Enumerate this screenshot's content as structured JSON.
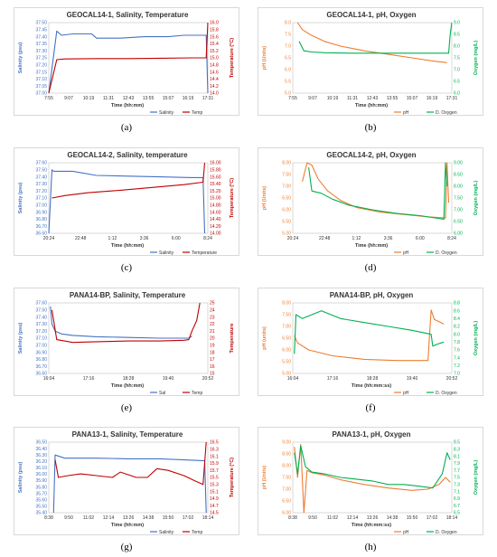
{
  "panels": [
    {
      "id": "a",
      "caption": "(a)",
      "title": "GEOCAL14-1, Salinity, Temperature",
      "xlabel": "Time (hh:mm)",
      "xticks": [
        "7:55",
        "9:07",
        "10:19",
        "11:31",
        "12:43",
        "13:55",
        "15:07",
        "16:19",
        "17:31"
      ],
      "left": {
        "label": "Salinity  (psu)",
        "color": "#4472C4",
        "ticks": [
          "37.00",
          "37.05",
          "37.10",
          "37.15",
          "37.20",
          "37.25",
          "37.30",
          "37.35",
          "37.40",
          "37.45",
          "37.50"
        ],
        "min": 37.0,
        "max": 37.5
      },
      "right": {
        "label": "Temperature (°C)",
        "color": "#C00000",
        "ticks": [
          "14.0",
          "14.2",
          "14.4",
          "14.6",
          "14.8",
          "15.0",
          "15.2",
          "15.4",
          "15.6",
          "15.8",
          "16.0"
        ],
        "min": 14.0,
        "max": 16.0
      },
      "legend": [
        "Salinity",
        "Temp"
      ],
      "series": [
        {
          "name": "Salinity",
          "axis": "left",
          "color": "#4472C4",
          "x": [
            0,
            0.05,
            0.08,
            0.15,
            0.27,
            0.3,
            0.45,
            0.6,
            0.75,
            0.85,
            0.92,
            0.99,
            1.0
          ],
          "y": [
            37.0,
            37.44,
            37.41,
            37.42,
            37.42,
            37.39,
            37.39,
            37.4,
            37.4,
            37.41,
            37.41,
            37.41,
            37.0
          ]
        },
        {
          "name": "Temp",
          "axis": "right",
          "color": "#C00000",
          "x": [
            0,
            0.05,
            0.1,
            0.3,
            0.5,
            0.7,
            0.9,
            0.99,
            1.0
          ],
          "y": [
            14.0,
            14.95,
            14.97,
            14.98,
            14.98,
            14.99,
            15.0,
            15.0,
            16.0
          ]
        }
      ]
    },
    {
      "id": "b",
      "caption": "(b)",
      "title": "GEOCAL14-1, pH, Oxygen",
      "xlabel": "Time (hh:mm)",
      "xticks": [
        "7:55",
        "9:07",
        "10:19",
        "11:31",
        "12:43",
        "13:55",
        "15:07",
        "16:19",
        "17:31"
      ],
      "left": {
        "label": "pH (Units)",
        "color": "#ED7D31",
        "ticks": [
          "5.0",
          "5.5",
          "6.0",
          "6.5",
          "7.0",
          "7.5",
          "8.0"
        ],
        "min": 5.0,
        "max": 8.0
      },
      "right": {
        "label": "Oxygen (mg/L)",
        "color": "#00B050",
        "ticks": [
          "6.0",
          "6.5",
          "7.0",
          "7.5",
          "8.0",
          "8.5",
          "9.0"
        ],
        "min": 6.0,
        "max": 9.0
      },
      "legend": [
        "pH",
        "D. Oxygen"
      ],
      "series": [
        {
          "name": "pH",
          "axis": "left",
          "color": "#ED7D31",
          "x": [
            0.03,
            0.06,
            0.12,
            0.2,
            0.3,
            0.45,
            0.6,
            0.75,
            0.9,
            0.97
          ],
          "y": [
            8.0,
            7.7,
            7.45,
            7.2,
            7.0,
            6.8,
            6.65,
            6.5,
            6.35,
            6.3
          ]
        },
        {
          "name": "D. Oxygen",
          "axis": "right",
          "color": "#00B050",
          "x": [
            0.04,
            0.07,
            0.12,
            0.2,
            0.35,
            0.5,
            0.65,
            0.8,
            0.95,
            0.98,
            0.99,
            1.0
          ],
          "y": [
            8.2,
            7.8,
            7.75,
            7.72,
            7.7,
            7.7,
            7.7,
            7.7,
            7.7,
            7.7,
            8.5,
            9.0
          ]
        }
      ]
    },
    {
      "id": "c",
      "caption": "(c)",
      "title": "GEOCAL14-2, Salinity, temperature",
      "xlabel": "Time (hh:mm)",
      "xticks": [
        "20:24",
        "22:48",
        "1:12",
        "3:36",
        "6:00",
        "8:24"
      ],
      "left": {
        "label": "Salinity (psu)",
        "color": "#4472C4",
        "ticks": [
          "36.60",
          "36.70",
          "36.80",
          "36.90",
          "37.00",
          "37.10",
          "37.20",
          "37.30",
          "37.40",
          "37.50",
          "37.60"
        ],
        "min": 36.6,
        "max": 37.6
      },
      "right": {
        "label": "Temperature (°C)",
        "color": "#C00000",
        "ticks": [
          "14.00",
          "14.20",
          "14.40",
          "14.60",
          "14.80",
          "15.00",
          "15.20",
          "15.40",
          "15.60",
          "15.80",
          "16.00"
        ],
        "min": 14.0,
        "max": 16.0
      },
      "legend": [
        "Salinity",
        "Temperature"
      ],
      "series": [
        {
          "name": "Salinity",
          "axis": "left",
          "color": "#4472C4",
          "x": [
            0,
            0.02,
            0.03,
            0.15,
            0.3,
            0.5,
            0.7,
            0.9,
            0.97,
            0.98
          ],
          "y": [
            36.6,
            37.5,
            37.48,
            37.48,
            37.42,
            37.41,
            37.4,
            37.39,
            37.39,
            36.6
          ]
        },
        {
          "name": "Temperature",
          "axis": "right",
          "color": "#C00000",
          "x": [
            0.02,
            0.1,
            0.25,
            0.45,
            0.65,
            0.85,
            0.97,
            0.98
          ],
          "y": [
            15.0,
            15.07,
            15.15,
            15.22,
            15.3,
            15.38,
            15.45,
            16.0
          ]
        }
      ]
    },
    {
      "id": "d",
      "caption": "(d)",
      "title": "GEOCAL14-2, pH, Oxygen",
      "xlabel": "Time (hh:mm)",
      "xticks": [
        "20:24",
        "22:48",
        "1:12",
        "3:36",
        "6:00",
        "8:24"
      ],
      "left": {
        "label": "pH (Units)",
        "color": "#ED7D31",
        "ticks": [
          "5.00",
          "5.50",
          "6.00",
          "6.50",
          "7.00",
          "7.50",
          "8.00"
        ],
        "min": 5.0,
        "max": 8.0
      },
      "right": {
        "label": "Oxygen (mg/L)",
        "color": "#00B050",
        "ticks": [
          "6.00",
          "6.50",
          "7.00",
          "7.50",
          "8.00",
          "8.50",
          "9.00"
        ],
        "min": 6.0,
        "max": 9.0
      },
      "legend": [
        "pH",
        "D. Oxygen"
      ],
      "series": [
        {
          "name": "pH",
          "axis": "left",
          "color": "#ED7D31",
          "x": [
            0.06,
            0.09,
            0.12,
            0.16,
            0.22,
            0.3,
            0.4,
            0.55,
            0.7,
            0.85,
            0.96,
            0.97,
            0.98
          ],
          "y": [
            7.2,
            8.0,
            7.9,
            7.3,
            6.8,
            6.4,
            6.1,
            5.9,
            5.8,
            5.7,
            5.65,
            8.0,
            6.3
          ]
        },
        {
          "name": "D. Oxygen",
          "axis": "right",
          "color": "#00B050",
          "x": [
            0.1,
            0.12,
            0.18,
            0.25,
            0.35,
            0.5,
            0.65,
            0.8,
            0.95,
            0.96,
            0.97
          ],
          "y": [
            8.8,
            7.8,
            7.7,
            7.45,
            7.2,
            7.0,
            6.85,
            6.75,
            6.6,
            9.0,
            8.0
          ]
        }
      ]
    },
    {
      "id": "e",
      "caption": "(e)",
      "title": "PANA14-BP,  Salinity, Temperature",
      "xlabel": "Time (hh:mm)",
      "xticks": [
        "16:04",
        "17:16",
        "18:28",
        "19:40",
        "20:52"
      ],
      "left": {
        "label": "Salinity (psu)",
        "color": "#4472C4",
        "ticks": [
          "36.60",
          "36.70",
          "36.80",
          "36.90",
          "37.00",
          "37.10",
          "37.20",
          "37.30",
          "37.40",
          "37.50",
          "37.60"
        ],
        "min": 36.6,
        "max": 37.6
      },
      "right": {
        "label": "Temperature",
        "color": "#C00000",
        "ticks": [
          "15",
          "16",
          "17",
          "18",
          "19",
          "20",
          "21",
          "22",
          "23",
          "24",
          "25"
        ],
        "min": 15,
        "max": 25
      },
      "legend": [
        "Sal",
        "Temp"
      ],
      "series": [
        {
          "name": "Sal",
          "axis": "left",
          "color": "#4472C4",
          "x": [
            0.01,
            0.02,
            0.04,
            0.08,
            0.15,
            0.3,
            0.5,
            0.7,
            0.88,
            0.9
          ],
          "y": [
            37.55,
            37.3,
            37.2,
            37.16,
            37.14,
            37.12,
            37.11,
            37.1,
            37.1,
            37.13
          ]
        },
        {
          "name": "Temp",
          "axis": "right",
          "color": "#C00000",
          "x": [
            0.02,
            0.05,
            0.15,
            0.3,
            0.5,
            0.7,
            0.85,
            0.88,
            0.9,
            0.93,
            0.95
          ],
          "y": [
            24,
            19.8,
            19.4,
            19.5,
            19.6,
            19.6,
            19.7,
            19.8,
            21,
            22.5,
            25
          ]
        }
      ]
    },
    {
      "id": "f",
      "caption": "(f)",
      "title": "PANA14-BP, pH, Oxygen",
      "xlabel": "Time (hh:mm:ss)",
      "xticks": [
        "16:04",
        "17:16",
        "18:28",
        "19:40",
        "20:52"
      ],
      "left": {
        "label": "pH (units)",
        "color": "#ED7D31",
        "ticks": [
          "5.00",
          "5.50",
          "6.00",
          "6.50",
          "7.00",
          "7.50",
          "8.00"
        ],
        "min": 5.0,
        "max": 8.0
      },
      "right": {
        "label": "Oxygen (mg/L)",
        "color": "#00B050",
        "ticks": [
          "7.0",
          "7.2",
          "7.4",
          "7.6",
          "7.8",
          "8.0",
          "8.2",
          "8.4",
          "8.6",
          "8.8"
        ],
        "min": 7.0,
        "max": 8.8
      },
      "legend": [
        "pH",
        "D. Oxygen"
      ],
      "series": [
        {
          "name": "pH",
          "axis": "left",
          "color": "#ED7D31",
          "x": [
            0.01,
            0.03,
            0.1,
            0.25,
            0.45,
            0.65,
            0.85,
            0.87,
            0.89,
            0.92,
            0.95
          ],
          "y": [
            6.6,
            6.3,
            6.0,
            5.75,
            5.6,
            5.55,
            5.55,
            7.7,
            7.3,
            7.2,
            7.1
          ]
        },
        {
          "name": "D. Oxygen",
          "axis": "right",
          "color": "#00B050",
          "x": [
            0.01,
            0.02,
            0.06,
            0.12,
            0.18,
            0.3,
            0.45,
            0.6,
            0.75,
            0.87,
            0.88,
            0.91,
            0.95
          ],
          "y": [
            7.5,
            8.5,
            8.4,
            8.5,
            8.6,
            8.4,
            8.3,
            8.2,
            8.1,
            8.0,
            7.7,
            7.75,
            7.8
          ]
        }
      ]
    },
    {
      "id": "g",
      "caption": "(g)",
      "title": "PANA13-1, Salinity, Temperature",
      "xlabel": "Time (hh:mm)",
      "xticks": [
        "8:38",
        "9:50",
        "11:02",
        "12:14",
        "13:26",
        "14:38",
        "15:50",
        "17:02",
        "18:14"
      ],
      "left": {
        "label": "Salinity (psu)",
        "color": "#4472C4",
        "ticks": [
          "35.40",
          "35.50",
          "35.60",
          "35.70",
          "35.80",
          "35.90",
          "36.00",
          "36.10",
          "36.20",
          "36.30",
          "36.40",
          "36.50"
        ],
        "min": 35.4,
        "max": 36.5
      },
      "right": {
        "label": "Temperature (°C)",
        "color": "#C00000",
        "ticks": [
          "14.5",
          "14.7",
          "14.9",
          "15.1",
          "15.3",
          "15.5",
          "15.7",
          "15.9",
          "16.1",
          "16.3",
          "16.5"
        ],
        "min": 14.5,
        "max": 16.5
      },
      "legend": [
        "Salinity",
        "Temp"
      ],
      "series": [
        {
          "name": "Salinity",
          "axis": "left",
          "color": "#4472C4",
          "x": [
            0.03,
            0.04,
            0.1,
            0.3,
            0.5,
            0.7,
            0.9,
            0.98,
            0.99
          ],
          "y": [
            35.4,
            36.3,
            36.25,
            36.25,
            36.24,
            36.24,
            36.22,
            36.21,
            35.4
          ]
        },
        {
          "name": "Temp",
          "axis": "right",
          "color": "#C00000",
          "x": [
            0.04,
            0.06,
            0.12,
            0.2,
            0.3,
            0.4,
            0.45,
            0.55,
            0.62,
            0.68,
            0.75,
            0.85,
            0.92,
            0.97,
            0.99
          ],
          "y": [
            16.0,
            15.5,
            15.55,
            15.6,
            15.55,
            15.5,
            15.65,
            15.5,
            15.5,
            15.75,
            15.7,
            15.55,
            15.4,
            15.3,
            16.5
          ]
        }
      ]
    },
    {
      "id": "h",
      "caption": "(h)",
      "title": "PANA13-1, pH, Oxygen",
      "xlabel": "Time (hh:mm:ss)",
      "xticks": [
        "8:38",
        "9:50",
        "11:02",
        "12:14",
        "13:26",
        "14:38",
        "15:50",
        "17:02",
        "18:14"
      ],
      "left": {
        "label": "pH (Units)",
        "color": "#ED7D31",
        "ticks": [
          "6.00",
          "6.50",
          "7.00",
          "7.50",
          "8.00",
          "8.50",
          "9.00"
        ],
        "min": 6.0,
        "max": 9.0
      },
      "right": {
        "label": "Oxygen (mg/L)",
        "color": "#00B050",
        "ticks": [
          "6.5",
          "6.7",
          "6.9",
          "7.1",
          "7.3",
          "7.5",
          "7.7",
          "7.9",
          "8.1",
          "8.3",
          "8.5"
        ],
        "min": 6.5,
        "max": 8.5
      },
      "legend": [
        "pH",
        "D. Oxygen"
      ],
      "series": [
        {
          "name": "pH",
          "axis": "left",
          "color": "#ED7D31",
          "x": [
            0.01,
            0.03,
            0.05,
            0.07,
            0.09,
            0.12,
            0.2,
            0.3,
            0.45,
            0.6,
            0.75,
            0.85,
            0.92,
            0.96,
            0.99
          ],
          "y": [
            8.8,
            7.5,
            8.9,
            6.0,
            7.8,
            7.7,
            7.6,
            7.4,
            7.2,
            7.05,
            6.95,
            7.0,
            7.2,
            7.5,
            7.3
          ]
        },
        {
          "name": "D. Oxygen",
          "axis": "right",
          "color": "#00B050",
          "x": [
            0.01,
            0.03,
            0.05,
            0.08,
            0.12,
            0.2,
            0.3,
            0.4,
            0.5,
            0.6,
            0.7,
            0.8,
            0.88,
            0.94,
            0.97,
            0.99
          ],
          "y": [
            8.2,
            7.6,
            8.4,
            7.8,
            7.65,
            7.6,
            7.5,
            7.45,
            7.4,
            7.3,
            7.3,
            7.25,
            7.2,
            7.6,
            8.2,
            8.0
          ]
        }
      ]
    }
  ]
}
